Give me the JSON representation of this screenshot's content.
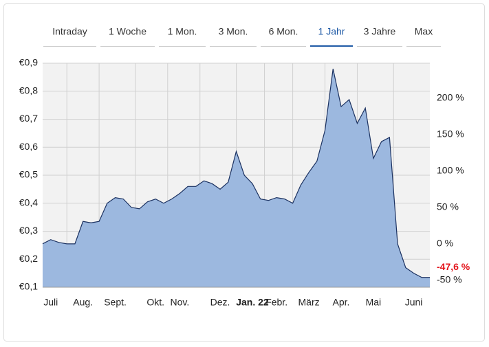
{
  "tabs": [
    "Intraday",
    "1 Woche",
    "1 Mon.",
    "3 Mon.",
    "6 Mon.",
    "1 Jahr",
    "3 Jahre",
    "Max"
  ],
  "active_tab": 5,
  "chart_data": {
    "type": "area",
    "categories": [
      null,
      "Juli",
      null,
      null,
      null,
      "Aug.",
      null,
      null,
      null,
      "Sept.",
      null,
      null,
      null,
      null,
      "Okt.",
      null,
      null,
      "Nov.",
      null,
      null,
      null,
      null,
      "Dez.",
      null,
      null,
      null,
      "Jan. 22",
      null,
      null,
      "Febr.",
      null,
      null,
      null,
      "März",
      null,
      null,
      null,
      "Apr.",
      null,
      null,
      null,
      "Mai",
      null,
      null,
      null,
      null,
      "Juni",
      null,
      null
    ],
    "bold_category": 26,
    "series": [
      {
        "color": "#1b3160",
        "fill": "#9cb8df",
        "values": [
          0.255,
          0.27,
          0.26,
          0.255,
          0.255,
          0.335,
          0.33,
          0.335,
          0.4,
          0.42,
          0.415,
          0.385,
          0.38,
          0.405,
          0.415,
          0.4,
          0.415,
          0.435,
          0.46,
          0.46,
          0.48,
          0.47,
          0.45,
          0.475,
          0.585,
          0.5,
          0.47,
          0.415,
          0.41,
          0.42,
          0.415,
          0.4,
          0.465,
          0.51,
          0.55,
          0.66,
          0.88,
          0.745,
          0.77,
          0.685,
          0.74,
          0.56,
          0.62,
          0.635,
          0.255,
          0.17,
          0.15,
          0.135,
          0.135
        ]
      }
    ],
    "ylim": [
      0.1,
      0.9
    ],
    "yticks": [
      {
        "value": 0.1,
        "label": "€0,1"
      },
      {
        "value": 0.2,
        "label": "€0,2"
      },
      {
        "value": 0.3,
        "label": "€0,3"
      },
      {
        "value": 0.4,
        "label": "€0,4"
      },
      {
        "value": 0.5,
        "label": "€0,5"
      },
      {
        "value": 0.6,
        "label": "€0,6"
      },
      {
        "value": 0.7,
        "label": "€0,7"
      },
      {
        "value": 0.8,
        "label": "€0,8"
      },
      {
        "value": 0.9,
        "label": "€0,9"
      }
    ],
    "y2lim": [
      -59.4,
      248.1
    ],
    "y2ticks": [
      {
        "value": -50,
        "label": "-50 %"
      },
      {
        "value": 0,
        "label": "0 %"
      },
      {
        "value": 50,
        "label": "50 %"
      },
      {
        "value": 100,
        "label": "100 %"
      },
      {
        "value": 150,
        "label": "150 %"
      },
      {
        "value": 200,
        "label": "200 %"
      }
    ],
    "last_change": {
      "value": -47.6,
      "label": "-47,6 %",
      "color": "#e3141b"
    },
    "grid": true
  }
}
